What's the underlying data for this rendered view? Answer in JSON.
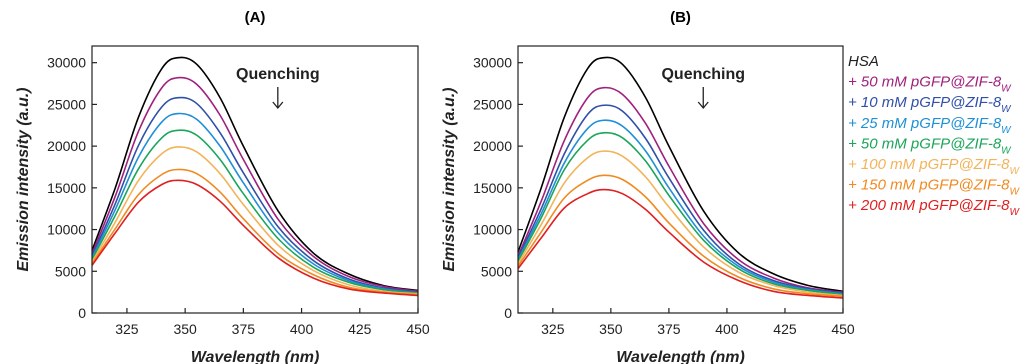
{
  "chart_data": [
    {
      "type": "line",
      "title": "(A)",
      "xlabel": "Wavelength (nm)",
      "ylabel": "Emission intensity (a.u.)",
      "xlim": [
        310,
        450
      ],
      "ylim": [
        0,
        32000
      ],
      "xticks": [
        325,
        350,
        375,
        400,
        425,
        450
      ],
      "yticks": [
        0,
        5000,
        10000,
        15000,
        20000,
        25000,
        30000
      ],
      "annotation": "Quenching",
      "x": [
        310,
        320,
        330,
        340,
        347,
        355,
        365,
        375,
        390,
        405,
        420,
        435,
        450
      ],
      "series": [
        {
          "color": "#000000",
          "values": [
            7500,
            15000,
            23500,
            29300,
            30600,
            29800,
            25800,
            20000,
            12200,
            7200,
            4700,
            3300,
            2700
          ]
        },
        {
          "color": "#a0207e",
          "values": [
            7100,
            14000,
            21800,
            27000,
            28200,
            27400,
            23700,
            18400,
            11200,
            6800,
            4400,
            3200,
            2600
          ]
        },
        {
          "color": "#3050a8",
          "values": [
            6800,
            13100,
            20100,
            24700,
            25800,
            25100,
            21600,
            16800,
            10300,
            6300,
            4100,
            3000,
            2500
          ]
        },
        {
          "color": "#1f8fd6",
          "values": [
            6600,
            12400,
            18700,
            22900,
            23900,
            23200,
            20000,
            15600,
            9600,
            5900,
            3900,
            2900,
            2400
          ]
        },
        {
          "color": "#1aa55a",
          "values": [
            6400,
            11700,
            17300,
            21000,
            21900,
            21300,
            18400,
            14300,
            8900,
            5500,
            3700,
            2800,
            2400
          ]
        },
        {
          "color": "#f2b45a",
          "values": [
            6100,
            10900,
            15900,
            19100,
            19900,
            19300,
            16700,
            13000,
            8100,
            5100,
            3400,
            2600,
            2300
          ]
        },
        {
          "color": "#f08a20",
          "values": [
            5900,
            10100,
            14200,
            16600,
            17200,
            16700,
            14500,
            11300,
            7100,
            4600,
            3100,
            2500,
            2200
          ]
        },
        {
          "color": "#e02020",
          "values": [
            5700,
            9600,
            13300,
            15400,
            15900,
            15400,
            13400,
            10500,
            6600,
            4200,
            2900,
            2400,
            2100
          ]
        }
      ]
    },
    {
      "type": "line",
      "title": "(B)",
      "xlabel": "Wavelength (nm)",
      "ylabel": "Emission intensity (a.u.)",
      "xlim": [
        310,
        450
      ],
      "ylim": [
        0,
        32000
      ],
      "xticks": [
        325,
        350,
        375,
        400,
        425,
        450
      ],
      "yticks": [
        0,
        5000,
        10000,
        15000,
        20000,
        25000,
        30000
      ],
      "annotation": "Quenching",
      "x": [
        310,
        320,
        330,
        340,
        347,
        355,
        365,
        375,
        390,
        405,
        420,
        435,
        450
      ],
      "series": [
        {
          "color": "#000000",
          "values": [
            7300,
            15000,
            23500,
            29300,
            30600,
            29800,
            25800,
            20000,
            12200,
            7200,
            4700,
            3300,
            2600
          ]
        },
        {
          "color": "#a0207e",
          "values": [
            6800,
            13400,
            20700,
            25800,
            27000,
            26200,
            22700,
            17600,
            10700,
            6400,
            4200,
            3000,
            2500
          ]
        },
        {
          "color": "#3050a8",
          "values": [
            6600,
            12500,
            19100,
            23800,
            24900,
            24200,
            20900,
            16200,
            9900,
            5900,
            3900,
            2900,
            2400
          ]
        },
        {
          "color": "#1f8fd6",
          "values": [
            6400,
            11900,
            18000,
            22100,
            23100,
            22400,
            19400,
            15000,
            9200,
            5600,
            3700,
            2800,
            2300
          ]
        },
        {
          "color": "#1aa55a",
          "values": [
            6200,
            11400,
            17200,
            20700,
            21600,
            21000,
            18200,
            14100,
            8700,
            5300,
            3500,
            2700,
            2200
          ]
        },
        {
          "color": "#f2b45a",
          "values": [
            5900,
            10600,
            15600,
            18600,
            19400,
            18800,
            16300,
            12700,
            7900,
            4900,
            3300,
            2500,
            2100
          ]
        },
        {
          "color": "#f08a20",
          "values": [
            5600,
            9700,
            13800,
            15900,
            16500,
            16000,
            13900,
            10800,
            6800,
            4300,
            2900,
            2300,
            2000
          ]
        },
        {
          "color": "#e02020",
          "values": [
            5300,
            9000,
            12600,
            14300,
            14800,
            14300,
            12400,
            9700,
            6100,
            3900,
            2600,
            2100,
            1800
          ]
        }
      ]
    }
  ],
  "legend": {
    "items": [
      {
        "prefix": "",
        "label": "HSA",
        "sub": "",
        "color": "#222222"
      },
      {
        "prefix": "+ ",
        "label": "50 mM pGFP@ZIF-8",
        "sub": "W",
        "color": "#a0207e"
      },
      {
        "prefix": "+ ",
        "label": "10 mM pGFP@ZIF-8",
        "sub": "W",
        "color": "#3050a8"
      },
      {
        "prefix": "+ ",
        "label": "25 mM pGFP@ZIF-8",
        "sub": "W",
        "color": "#1f8fd6"
      },
      {
        "prefix": "+ ",
        "label": "50 mM pGFP@ZIF-8",
        "sub": "W",
        "color": "#1aa55a"
      },
      {
        "prefix": "+ ",
        "label": "100 mM pGFP@ZIF-8",
        "sub": "W",
        "color": "#f2b45a"
      },
      {
        "prefix": "+ ",
        "label": "150 mM pGFP@ZIF-8",
        "sub": "W",
        "color": "#f08a20"
      },
      {
        "prefix": "+ ",
        "label": "200 mM pGFP@ZIF-8",
        "sub": "W",
        "color": "#e02020"
      }
    ]
  }
}
